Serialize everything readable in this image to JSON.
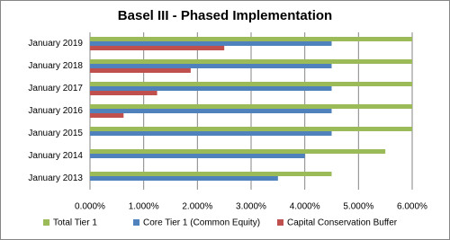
{
  "chart_data": {
    "type": "hbar",
    "title": "Basel III - Phased Implementation",
    "categories": [
      "January 2013",
      "January 2014",
      "January 2015",
      "January 2016",
      "January 2017",
      "January 2018",
      "January 2019"
    ],
    "series": [
      {
        "name": "Total Tier 1",
        "color": "#9bbb59",
        "values": [
          4.5,
          5.5,
          6.0,
          6.0,
          6.0,
          6.0,
          6.0
        ]
      },
      {
        "name": "Core Tier 1 (Common  Equity)",
        "color": "#4f81bd",
        "values": [
          3.5,
          4.0,
          4.5,
          4.5,
          4.5,
          4.5,
          4.5
        ]
      },
      {
        "name": "Capital Conservation Buffer",
        "color": "#c0504d",
        "values": [
          0,
          0,
          0,
          0.625,
          1.25,
          1.875,
          2.5
        ]
      }
    ],
    "xlim": [
      0,
      6
    ],
    "xticks": [
      {
        "value": 0,
        "label": "0.000%"
      },
      {
        "value": 1,
        "label": "1.000%"
      },
      {
        "value": 2,
        "label": "2.000%"
      },
      {
        "value": 3,
        "label": "3.000%"
      },
      {
        "value": 4,
        "label": "4.000%"
      },
      {
        "value": 5,
        "label": "5.000%"
      },
      {
        "value": 6,
        "label": "6.000%"
      }
    ],
    "grid": true,
    "legend": "bottom"
  }
}
